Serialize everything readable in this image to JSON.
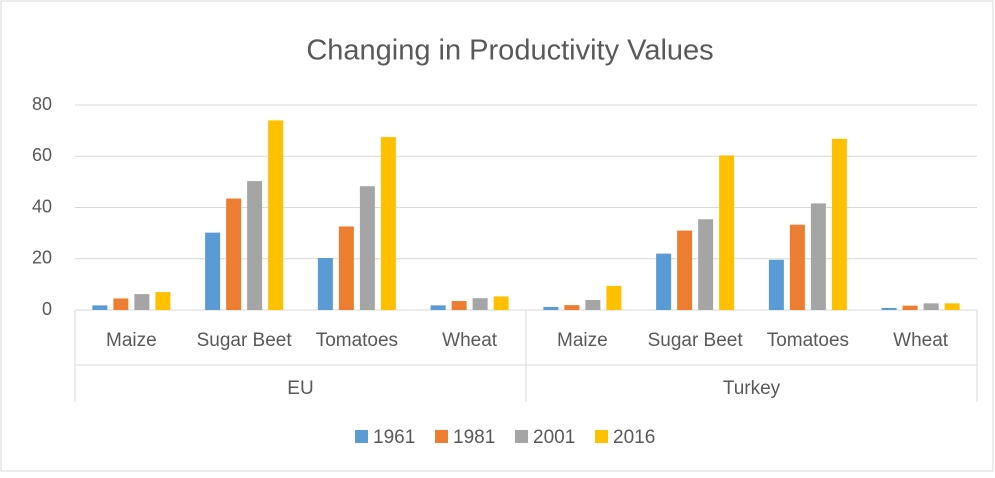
{
  "chart_data": {
    "type": "bar",
    "title": "Changing in Productivity Values",
    "groups": [
      "EU",
      "Turkey"
    ],
    "categories": [
      "Maize",
      "Sugar Beet",
      "Tomatoes",
      "Wheat",
      "Maize",
      "Sugar Beet",
      "Tomatoes",
      "Wheat"
    ],
    "series": [
      {
        "name": "1961",
        "color": "#5b9bd5",
        "values": [
          1.8,
          30.2,
          20.3,
          1.8,
          1.2,
          22,
          19.6,
          0.8
        ]
      },
      {
        "name": "1981",
        "color": "#ed7d31",
        "values": [
          4.5,
          43.5,
          32.6,
          3.5,
          1.9,
          31,
          33.3,
          1.7
        ]
      },
      {
        "name": "2001",
        "color": "#a5a5a5",
        "values": [
          6.2,
          50.3,
          48.3,
          4.6,
          3.9,
          35.4,
          41.6,
          2.6
        ]
      },
      {
        "name": "2016",
        "color": "#ffc000",
        "values": [
          7,
          74,
          67.5,
          5.3,
          9.4,
          60.3,
          66.8,
          2.6
        ]
      }
    ],
    "ylim": [
      0,
      80
    ],
    "yticks": [
      0,
      20,
      40,
      60,
      80
    ],
    "grid": true,
    "legend": "bottom"
  }
}
